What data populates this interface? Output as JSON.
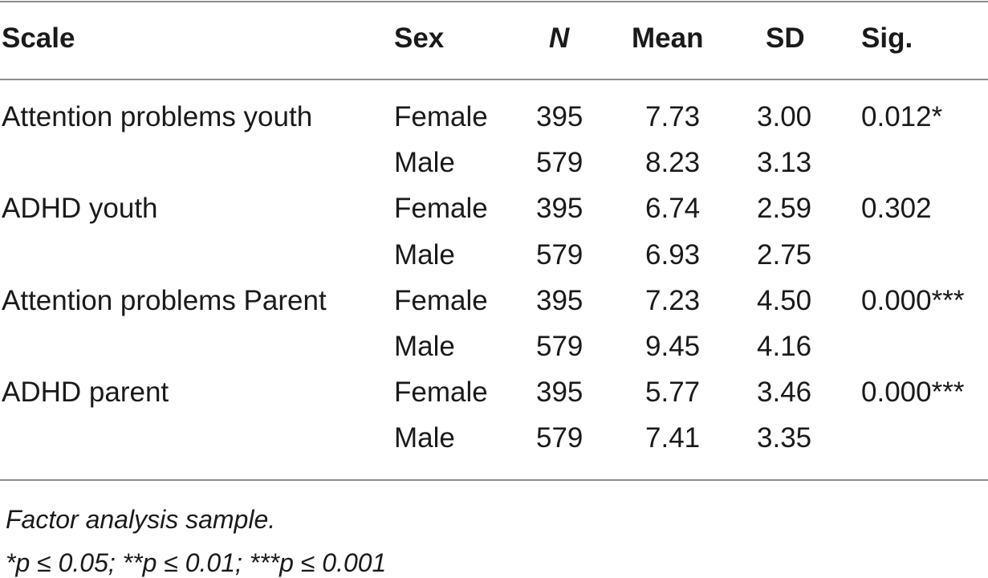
{
  "table": {
    "headers": {
      "scale": "Scale",
      "sex": "Sex",
      "n": "N",
      "mean": "Mean",
      "sd": "SD",
      "sig": "Sig."
    },
    "rows": [
      {
        "scale": "Attention problems youth",
        "sex": "Female",
        "n": "395",
        "mean": "7.73",
        "sd": "3.00",
        "sig": "0.012*"
      },
      {
        "scale": "",
        "sex": "Male",
        "n": "579",
        "mean": "8.23",
        "sd": "3.13",
        "sig": ""
      },
      {
        "scale": "ADHD youth",
        "sex": "Female",
        "n": "395",
        "mean": "6.74",
        "sd": "2.59",
        "sig": "0.302"
      },
      {
        "scale": "",
        "sex": "Male",
        "n": "579",
        "mean": "6.93",
        "sd": "2.75",
        "sig": ""
      },
      {
        "scale": "Attention problems Parent",
        "sex": "Female",
        "n": "395",
        "mean": "7.23",
        "sd": "4.50",
        "sig": "0.000***"
      },
      {
        "scale": "",
        "sex": "Male",
        "n": "579",
        "mean": "9.45",
        "sd": "4.16",
        "sig": ""
      },
      {
        "scale": "ADHD parent",
        "sex": "Female",
        "n": "395",
        "mean": "5.77",
        "sd": "3.46",
        "sig": "0.000***"
      },
      {
        "scale": "",
        "sex": "Male",
        "n": "579",
        "mean": "7.41",
        "sd": "3.35",
        "sig": ""
      }
    ]
  },
  "footnotes": {
    "sample": "Factor analysis sample.",
    "significance": "*p ≤ 0.05; **p ≤ 0.01; ***p ≤ 0.001"
  }
}
